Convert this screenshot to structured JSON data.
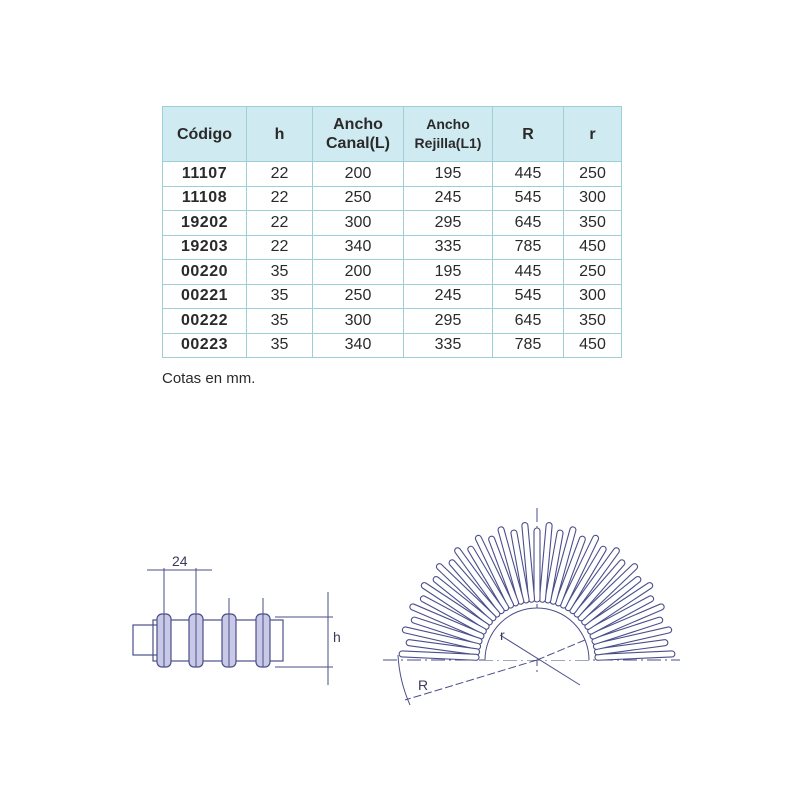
{
  "table": {
    "headers": [
      "Código",
      "h",
      "Ancho Canal(L)",
      "Ancho Rejilla(L1)",
      "R",
      "r"
    ],
    "rows": [
      [
        "11107",
        "22",
        "200",
        "195",
        "445",
        "250"
      ],
      [
        "11108",
        "22",
        "250",
        "245",
        "545",
        "300"
      ],
      [
        "19202",
        "22",
        "300",
        "295",
        "645",
        "350"
      ],
      [
        "19203",
        "22",
        "340",
        "335",
        "785",
        "450"
      ],
      [
        "00220",
        "35",
        "200",
        "195",
        "445",
        "250"
      ],
      [
        "00221",
        "35",
        "250",
        "245",
        "545",
        "300"
      ],
      [
        "00222",
        "35",
        "300",
        "295",
        "645",
        "350"
      ],
      [
        "00223",
        "35",
        "340",
        "335",
        "785",
        "450"
      ]
    ]
  },
  "note": "Cotas en mm.",
  "diagrams": {
    "side_view": {
      "pitch_label": "24",
      "height_label": "h"
    },
    "curved_view": {
      "outer_radius_label": "R",
      "inner_radius_label": "r"
    },
    "line_color": "#4a4f8a",
    "header_color": "#cfeaf0"
  }
}
